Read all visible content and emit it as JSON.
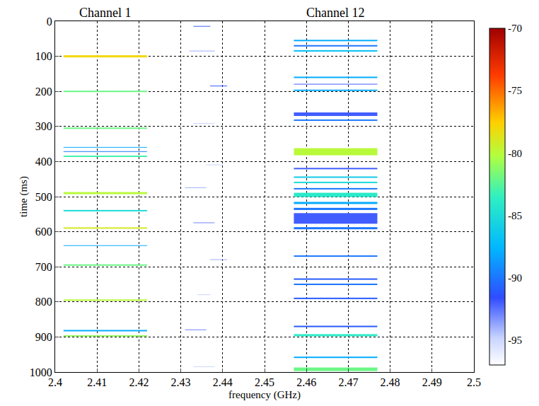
{
  "chart_data": {
    "type": "heatmap",
    "x_label": "frequency (GHz)",
    "y_label": "time (ms)",
    "xlim": [
      2.4,
      2.5
    ],
    "xticks": [
      2.4,
      2.41,
      2.42,
      2.43,
      2.44,
      2.45,
      2.46,
      2.47,
      2.48,
      2.49,
      2.5
    ],
    "ylim": [
      1000,
      0
    ],
    "yticks": [
      0,
      100,
      200,
      300,
      400,
      500,
      600,
      700,
      800,
      900,
      1000
    ],
    "grid": true,
    "colorbar": {
      "range": [
        -97,
        -70
      ],
      "ticks": [
        -70,
        -75,
        -80,
        -85,
        -90,
        -95
      ]
    },
    "channels": [
      {
        "name": "Channel 1",
        "bursts": [
          {
            "time": 100,
            "duration": 6,
            "freq_range": [
              2.402,
              2.422
            ],
            "power": -78
          },
          {
            "time": 200,
            "duration": 4,
            "freq_range": [
              2.402,
              2.422
            ],
            "power": -82
          },
          {
            "time": 305,
            "duration": 4,
            "freq_range": [
              2.402,
              2.422
            ],
            "power": -82
          },
          {
            "time": 360,
            "duration": 3,
            "freq_range": [
              2.402,
              2.422
            ],
            "power": -88
          },
          {
            "time": 372,
            "duration": 3,
            "freq_range": [
              2.402,
              2.422
            ],
            "power": -90
          },
          {
            "time": 385,
            "duration": 4,
            "freq_range": [
              2.402,
              2.422
            ],
            "power": -83
          },
          {
            "time": 490,
            "duration": 6,
            "freq_range": [
              2.402,
              2.422
            ],
            "power": -80
          },
          {
            "time": 540,
            "duration": 4,
            "freq_range": [
              2.402,
              2.422
            ],
            "power": -85
          },
          {
            "time": 590,
            "duration": 5,
            "freq_range": [
              2.402,
              2.422
            ],
            "power": -79
          },
          {
            "time": 640,
            "duration": 3,
            "freq_range": [
              2.402,
              2.422
            ],
            "power": -88
          },
          {
            "time": 695,
            "duration": 4,
            "freq_range": [
              2.402,
              2.422
            ],
            "power": -82
          },
          {
            "time": 795,
            "duration": 4,
            "freq_range": [
              2.402,
              2.422
            ],
            "power": -80
          },
          {
            "time": 882,
            "duration": 4,
            "freq_range": [
              2.402,
              2.422
            ],
            "power": -88
          },
          {
            "time": 897,
            "duration": 4,
            "freq_range": [
              2.402,
              2.422
            ],
            "power": -81
          }
        ]
      },
      {
        "name": "Channel 12",
        "bursts": [
          {
            "time": 55,
            "duration": 4,
            "freq_range": [
              2.457,
              2.477
            ],
            "power": -88
          },
          {
            "time": 70,
            "duration": 4,
            "freq_range": [
              2.457,
              2.477
            ],
            "power": -90
          },
          {
            "time": 85,
            "duration": 5,
            "freq_range": [
              2.457,
              2.477
            ],
            "power": -87
          },
          {
            "time": 160,
            "duration": 4,
            "freq_range": [
              2.457,
              2.477
            ],
            "power": -88
          },
          {
            "time": 180,
            "duration": 3,
            "freq_range": [
              2.457,
              2.477
            ],
            "power": -92
          },
          {
            "time": 197,
            "duration": 4,
            "freq_range": [
              2.457,
              2.477
            ],
            "power": -88
          },
          {
            "time": 265,
            "duration": 10,
            "freq_range": [
              2.457,
              2.477
            ],
            "power": -92
          },
          {
            "time": 282,
            "duration": 4,
            "freq_range": [
              2.457,
              2.477
            ],
            "power": -90
          },
          {
            "time": 372,
            "duration": 20,
            "freq_range": [
              2.457,
              2.477
            ],
            "power": -80
          },
          {
            "time": 420,
            "duration": 4,
            "freq_range": [
              2.457,
              2.477
            ],
            "power": -92
          },
          {
            "time": 445,
            "duration": 5,
            "freq_range": [
              2.457,
              2.477
            ],
            "power": -86
          },
          {
            "time": 460,
            "duration": 5,
            "freq_range": [
              2.457,
              2.477
            ],
            "power": -85
          },
          {
            "time": 478,
            "duration": 5,
            "freq_range": [
              2.457,
              2.477
            ],
            "power": -90
          },
          {
            "time": 495,
            "duration": 12,
            "freq_range": [
              2.457,
              2.477
            ],
            "power": -84
          },
          {
            "time": 518,
            "duration": 6,
            "freq_range": [
              2.457,
              2.477
            ],
            "power": -88
          },
          {
            "time": 535,
            "duration": 6,
            "freq_range": [
              2.457,
              2.477
            ],
            "power": -90
          },
          {
            "time": 562,
            "duration": 30,
            "freq_range": [
              2.457,
              2.477
            ],
            "power": -92
          },
          {
            "time": 590,
            "duration": 6,
            "freq_range": [
              2.457,
              2.477
            ],
            "power": -90
          },
          {
            "time": 670,
            "duration": 5,
            "freq_range": [
              2.457,
              2.477
            ],
            "power": -90
          },
          {
            "time": 735,
            "duration": 4,
            "freq_range": [
              2.457,
              2.477
            ],
            "power": -91
          },
          {
            "time": 750,
            "duration": 4,
            "freq_range": [
              2.457,
              2.477
            ],
            "power": -90
          },
          {
            "time": 790,
            "duration": 4,
            "freq_range": [
              2.457,
              2.477
            ],
            "power": -91
          },
          {
            "time": 870,
            "duration": 4,
            "freq_range": [
              2.457,
              2.477
            ],
            "power": -91
          },
          {
            "time": 895,
            "duration": 6,
            "freq_range": [
              2.457,
              2.477
            ],
            "power": -84
          },
          {
            "time": 958,
            "duration": 4,
            "freq_range": [
              2.457,
              2.477
            ],
            "power": -88
          },
          {
            "time": 992,
            "duration": 10,
            "freq_range": [
              2.457,
              2.477
            ],
            "power": -82
          }
        ]
      }
    ],
    "other_bursts": [
      {
        "time": 15,
        "duration": 3,
        "freq_range": [
          2.433,
          2.437
        ],
        "power": -92
      },
      {
        "time": 85,
        "duration": 4,
        "freq_range": [
          2.432,
          2.438
        ],
        "power": -95
      },
      {
        "time": 185,
        "duration": 3,
        "freq_range": [
          2.437,
          2.441
        ],
        "power": -92
      },
      {
        "time": 292,
        "duration": 3,
        "freq_range": [
          2.433,
          2.438
        ],
        "power": -95
      },
      {
        "time": 410,
        "duration": 3,
        "freq_range": [
          2.436,
          2.44
        ],
        "power": -95
      },
      {
        "time": 475,
        "duration": 3,
        "freq_range": [
          2.431,
          2.436
        ],
        "power": -94
      },
      {
        "time": 575,
        "duration": 3,
        "freq_range": [
          2.433,
          2.438
        ],
        "power": -93
      },
      {
        "time": 680,
        "duration": 3,
        "freq_range": [
          2.437,
          2.441
        ],
        "power": -94
      },
      {
        "time": 780,
        "duration": 3,
        "freq_range": [
          2.434,
          2.437
        ],
        "power": -95
      },
      {
        "time": 880,
        "duration": 3,
        "freq_range": [
          2.431,
          2.436
        ],
        "power": -93
      },
      {
        "time": 985,
        "duration": 3,
        "freq_range": [
          2.433,
          2.438
        ],
        "power": -95
      }
    ]
  }
}
